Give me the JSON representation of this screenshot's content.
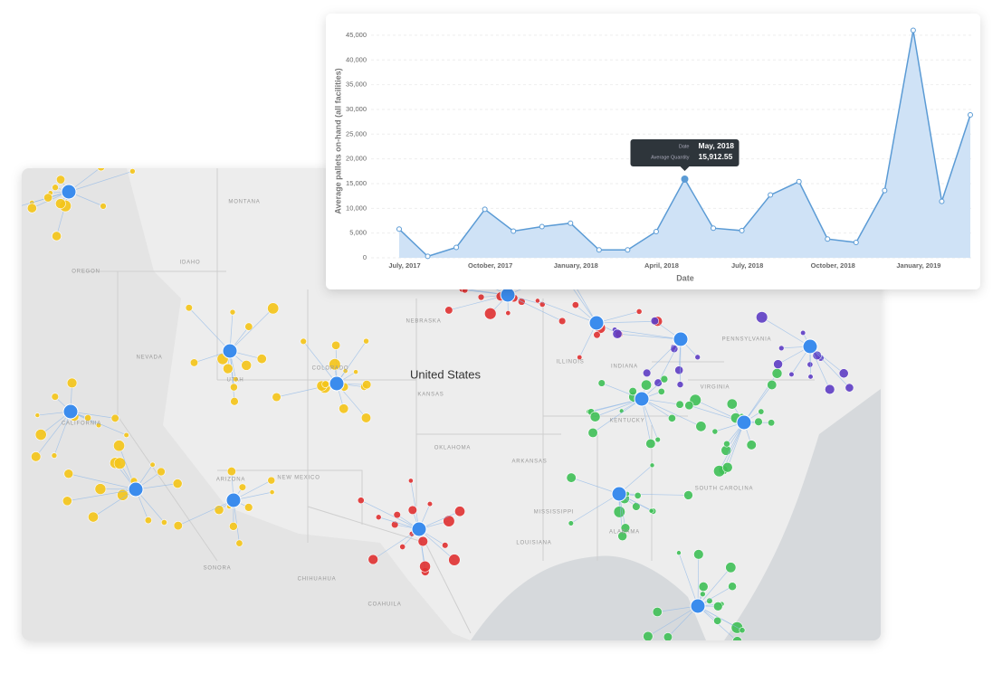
{
  "map": {
    "labels": [
      "United States",
      "MONTANA",
      "OREGON",
      "IDAHO",
      "NEVADA",
      "UTAH",
      "CALIFORNIA",
      "ARIZONA",
      "NEW MEXICO",
      "COLORADO",
      "NEBRASKA",
      "KANSAS",
      "OKLAHOMA",
      "ARKANSAS",
      "MISSISSIPPI",
      "ALABAMA",
      "LOUISIANA",
      "KENTUCKY",
      "INDIANA",
      "ILLINOIS",
      "PENNSYLVANIA",
      "VIRGINIA",
      "SOUTH CAROLINA",
      "CHIHUAHUA",
      "SONORA",
      "COAHUILA"
    ]
  },
  "chart_data": {
    "type": "area",
    "x_label": "Date",
    "y_label": "Average pallets on-hand (all facilities)",
    "categories": [
      "July, 2017",
      null,
      null,
      "October, 2017",
      null,
      null,
      "January, 2018",
      null,
      null,
      "April, 2018",
      null,
      null,
      "July, 2018",
      null,
      null,
      "October, 2018",
      null,
      null,
      "January, 2019",
      null,
      null
    ],
    "values": [
      5800,
      300,
      2100,
      9800,
      5400,
      6300,
      7000,
      1600,
      1600,
      5300,
      15912.55,
      6000,
      5500,
      12700,
      15400,
      3800,
      3100,
      13600,
      46000,
      11400,
      28900
    ],
    "color": "#5b9bd5",
    "fill": "#cfe2f6",
    "ylim": [
      0,
      47000
    ],
    "yticks": [
      0,
      {
        "value": 5000,
        "label": "5,000"
      },
      {
        "value": 10000,
        "label": "10,000"
      },
      {
        "value": 15000,
        "label": "15,000"
      },
      {
        "value": 20000,
        "label": "20,000"
      },
      {
        "value": 25000,
        "label": "25,000"
      },
      {
        "value": 30000,
        "label": "30,000"
      },
      {
        "value": 35000,
        "label": "35,000"
      },
      {
        "value": 40000,
        "label": "40,000"
      },
      {
        "value": 45000,
        "label": "45,000"
      }
    ],
    "grid": true,
    "tooltip": {
      "index": 10,
      "date_label": "Date",
      "date": "May, 2018",
      "quantity_label": "Average Quantity",
      "quantity": "15,912.55"
    }
  }
}
